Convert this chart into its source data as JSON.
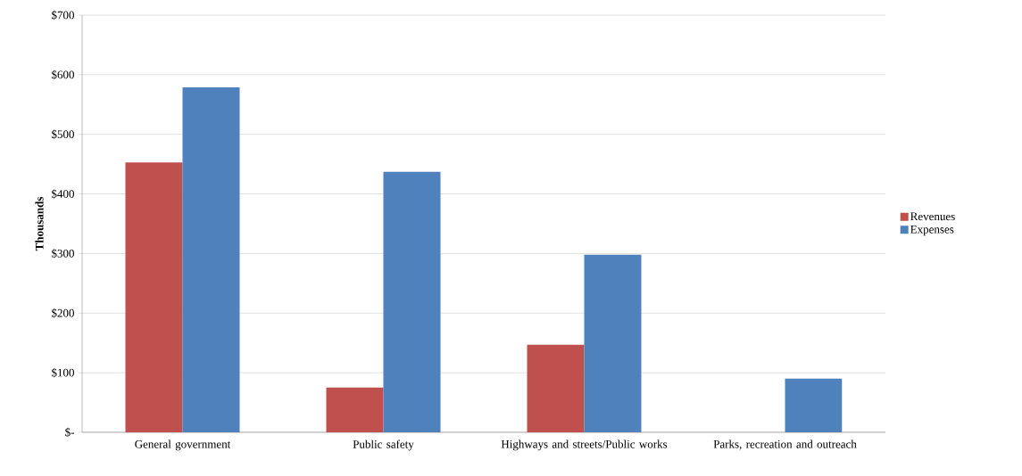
{
  "chart_data": {
    "type": "bar",
    "ylabel": "Thousands",
    "categories": [
      "General government",
      "Public safety",
      "Highways and streets/Public works",
      "Parks, recreation and outreach"
    ],
    "series": [
      {
        "name": "Revenues",
        "color": "#c0504d",
        "values": [
          453,
          75,
          147,
          0
        ]
      },
      {
        "name": "Expenses",
        "color": "#4f81bd",
        "values": [
          579,
          437,
          298,
          90
        ]
      }
    ],
    "ylim": [
      0,
      700
    ],
    "yticks": [
      {
        "value": 0,
        "label": "$-"
      },
      {
        "value": 100,
        "label": "$100"
      },
      {
        "value": 200,
        "label": "$200"
      },
      {
        "value": 300,
        "label": "$300"
      },
      {
        "value": 400,
        "label": "$400"
      },
      {
        "value": 500,
        "label": "$500"
      },
      {
        "value": 600,
        "label": "$600"
      },
      {
        "value": 700,
        "label": "$700"
      }
    ],
    "grid": "y",
    "legend": "right"
  }
}
